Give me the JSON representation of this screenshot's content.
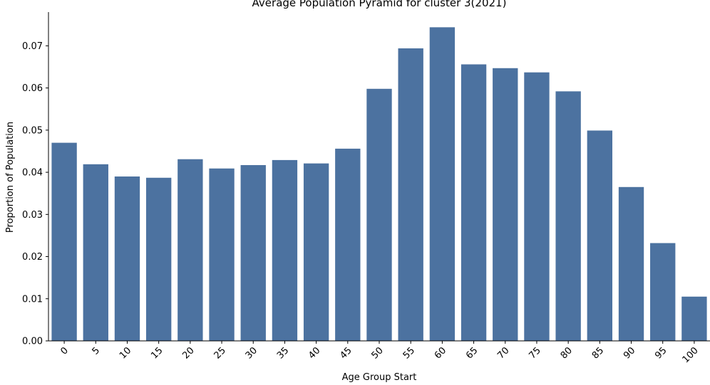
{
  "chart_data": {
    "type": "bar",
    "title": "Average Population Pyramid for cluster 3(2021)",
    "xlabel": "Age Group Start",
    "ylabel": "Proportion of Population",
    "categories": [
      "0",
      "5",
      "10",
      "15",
      "20",
      "25",
      "30",
      "35",
      "40",
      "45",
      "50",
      "55",
      "60",
      "65",
      "70",
      "75",
      "80",
      "85",
      "90",
      "95",
      "100"
    ],
    "values": [
      0.047,
      0.0419,
      0.039,
      0.0387,
      0.0431,
      0.0409,
      0.0417,
      0.0429,
      0.0421,
      0.0456,
      0.0598,
      0.0694,
      0.0744,
      0.0656,
      0.0647,
      0.0637,
      0.0592,
      0.0499,
      0.0365,
      0.0232,
      0.0105
    ],
    "ylim": [
      0,
      0.078
    ],
    "yticks": [
      "0.00",
      "0.01",
      "0.02",
      "0.03",
      "0.04",
      "0.05",
      "0.06",
      "0.07"
    ],
    "bar_color": "#4c72a0",
    "grid": false,
    "legend": "none"
  }
}
